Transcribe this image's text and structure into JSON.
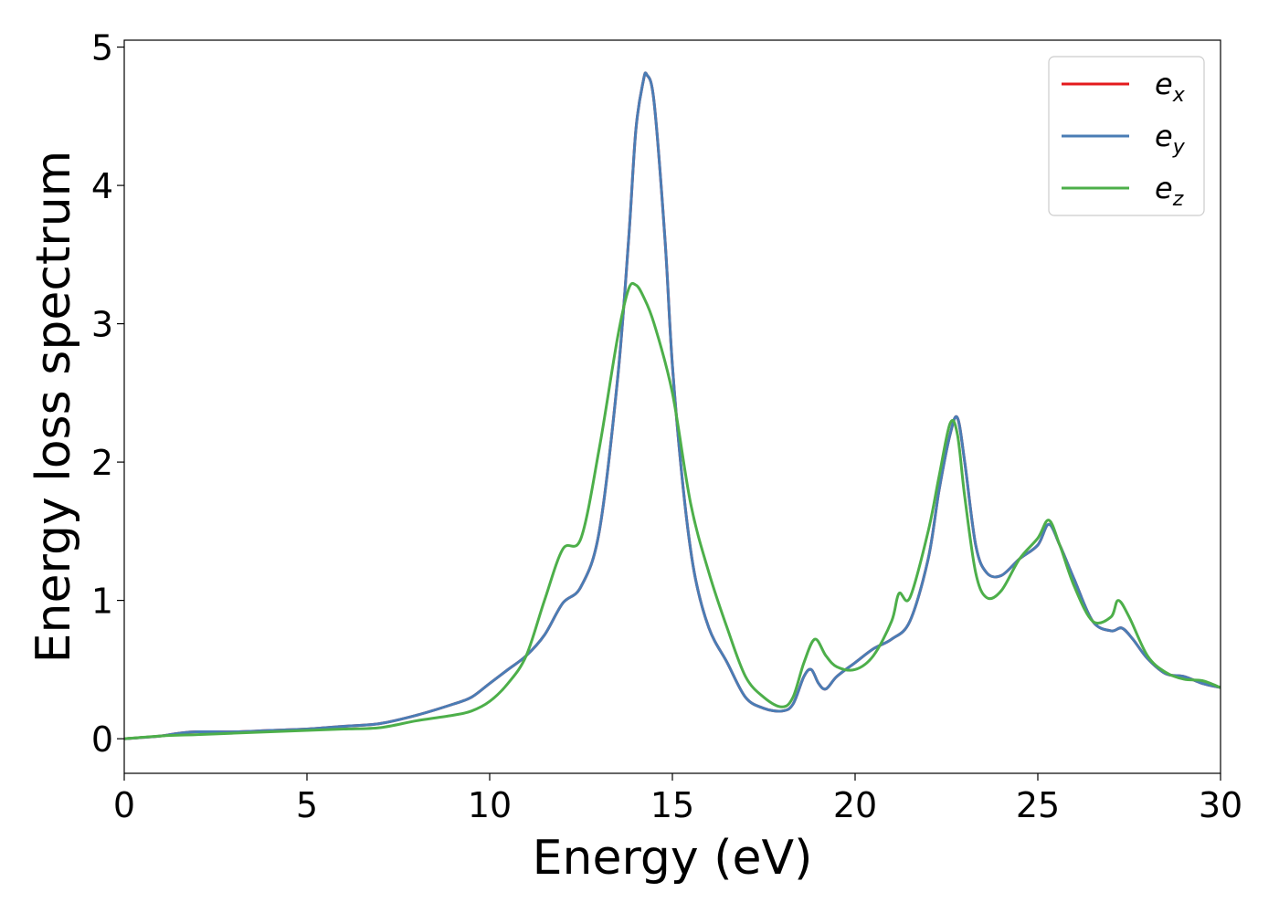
{
  "chart_data": {
    "type": "line",
    "title": "",
    "xlabel": "Energy (eV)",
    "ylabel": "Energy loss spectrum",
    "xlim": [
      0,
      30
    ],
    "ylim": [
      -0.25,
      5.05
    ],
    "xticks": [
      0,
      5,
      10,
      15,
      20,
      25,
      30
    ],
    "yticks": [
      0,
      1,
      2,
      3,
      4,
      5
    ],
    "grid": false,
    "legend_position": "top-right",
    "series": [
      {
        "name": "e_x",
        "label_base": "e",
        "label_sub": "x",
        "color": "#e41a1c",
        "x": [
          0,
          1,
          1.5,
          2,
          3,
          4,
          5,
          6,
          7,
          8,
          9,
          9.5,
          10,
          10.5,
          11,
          11.5,
          12,
          12.5,
          13,
          13.5,
          13.8,
          14,
          14.2,
          14.3,
          14.5,
          14.8,
          15,
          15.3,
          15.6,
          16,
          16.5,
          17,
          17.5,
          18,
          18.3,
          18.6,
          18.8,
          19,
          19.2,
          19.5,
          20,
          20.5,
          21,
          21.5,
          22,
          22.3,
          22.6,
          22.8,
          23,
          23.3,
          23.6,
          24,
          24.5,
          25,
          25.3,
          25.6,
          26,
          26.5,
          27,
          27.3,
          27.6,
          28,
          28.5,
          29,
          29.5,
          30
        ],
        "y": [
          0.0,
          0.02,
          0.04,
          0.05,
          0.05,
          0.06,
          0.07,
          0.09,
          0.11,
          0.17,
          0.25,
          0.3,
          0.4,
          0.5,
          0.6,
          0.75,
          0.98,
          1.1,
          1.5,
          2.6,
          3.6,
          4.4,
          4.75,
          4.8,
          4.6,
          3.6,
          2.7,
          1.8,
          1.2,
          0.8,
          0.55,
          0.3,
          0.22,
          0.2,
          0.25,
          0.45,
          0.5,
          0.4,
          0.36,
          0.45,
          0.55,
          0.65,
          0.72,
          0.85,
          1.3,
          1.8,
          2.2,
          2.32,
          2.0,
          1.4,
          1.2,
          1.18,
          1.3,
          1.4,
          1.55,
          1.4,
          1.15,
          0.85,
          0.78,
          0.8,
          0.72,
          0.58,
          0.47,
          0.45,
          0.4,
          0.37
        ]
      },
      {
        "name": "e_y",
        "label_base": "e",
        "label_sub": "y",
        "color": "#4a7db5",
        "x": [
          0,
          1,
          1.5,
          2,
          3,
          4,
          5,
          6,
          7,
          8,
          9,
          9.5,
          10,
          10.5,
          11,
          11.5,
          12,
          12.5,
          13,
          13.5,
          13.8,
          14,
          14.2,
          14.3,
          14.5,
          14.8,
          15,
          15.3,
          15.6,
          16,
          16.5,
          17,
          17.5,
          18,
          18.3,
          18.6,
          18.8,
          19,
          19.2,
          19.5,
          20,
          20.5,
          21,
          21.5,
          22,
          22.3,
          22.6,
          22.8,
          23,
          23.3,
          23.6,
          24,
          24.5,
          25,
          25.3,
          25.6,
          26,
          26.5,
          27,
          27.3,
          27.6,
          28,
          28.5,
          29,
          29.5,
          30
        ],
        "y": [
          0.0,
          0.02,
          0.04,
          0.05,
          0.05,
          0.06,
          0.07,
          0.09,
          0.11,
          0.17,
          0.25,
          0.3,
          0.4,
          0.5,
          0.6,
          0.75,
          0.98,
          1.1,
          1.5,
          2.6,
          3.6,
          4.4,
          4.75,
          4.8,
          4.6,
          3.6,
          2.7,
          1.8,
          1.2,
          0.8,
          0.55,
          0.3,
          0.22,
          0.2,
          0.25,
          0.45,
          0.5,
          0.4,
          0.36,
          0.45,
          0.55,
          0.65,
          0.72,
          0.85,
          1.3,
          1.8,
          2.2,
          2.32,
          2.0,
          1.4,
          1.2,
          1.18,
          1.3,
          1.4,
          1.55,
          1.4,
          1.15,
          0.85,
          0.78,
          0.8,
          0.72,
          0.58,
          0.47,
          0.45,
          0.4,
          0.37
        ]
      },
      {
        "name": "e_z",
        "label_base": "e",
        "label_sub": "z",
        "color": "#4daf4a",
        "x": [
          0,
          1,
          2,
          3,
          4,
          5,
          6,
          7,
          8,
          9,
          9.5,
          10,
          10.5,
          11,
          11.5,
          12,
          12.5,
          13,
          13.5,
          13.8,
          14,
          14.2,
          14.5,
          15,
          15.5,
          16,
          16.5,
          17,
          17.5,
          18,
          18.3,
          18.6,
          18.9,
          19.2,
          19.5,
          20,
          20.5,
          21,
          21.2,
          21.5,
          22,
          22.3,
          22.6,
          22.8,
          23,
          23.3,
          23.6,
          24,
          24.5,
          25,
          25.3,
          25.6,
          26,
          26.5,
          27,
          27.2,
          27.5,
          28,
          28.5,
          29,
          29.5,
          30
        ],
        "y": [
          0.0,
          0.02,
          0.03,
          0.04,
          0.05,
          0.06,
          0.07,
          0.08,
          0.13,
          0.17,
          0.2,
          0.27,
          0.4,
          0.6,
          1.0,
          1.37,
          1.45,
          2.1,
          2.9,
          3.25,
          3.28,
          3.2,
          3.0,
          2.5,
          1.7,
          1.2,
          0.8,
          0.45,
          0.3,
          0.23,
          0.3,
          0.55,
          0.72,
          0.6,
          0.52,
          0.5,
          0.6,
          0.85,
          1.05,
          1.02,
          1.5,
          1.9,
          2.28,
          2.2,
          1.75,
          1.2,
          1.02,
          1.07,
          1.3,
          1.45,
          1.58,
          1.4,
          1.1,
          0.85,
          0.88,
          1.0,
          0.88,
          0.6,
          0.48,
          0.43,
          0.42,
          0.37
        ]
      }
    ]
  }
}
